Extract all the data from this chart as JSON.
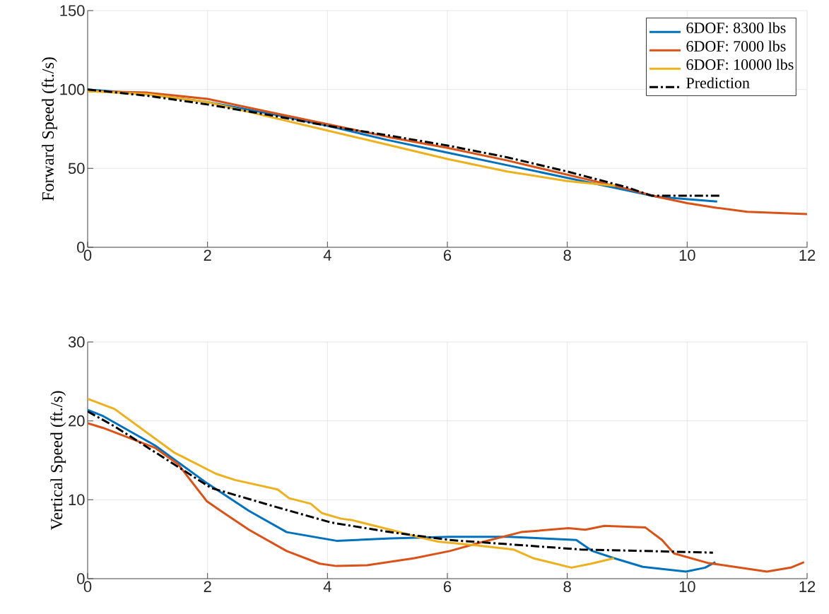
{
  "chart_data": [
    {
      "type": "line",
      "ylabel": "Forward Speed (ft./s)",
      "xlim": [
        0,
        12
      ],
      "ylim": [
        0,
        150
      ],
      "xticks": [
        0,
        2,
        4,
        6,
        8,
        10,
        12
      ],
      "yticks": [
        0,
        50,
        100,
        150
      ],
      "grid": true,
      "legend": "top right",
      "series": [
        {
          "name": "6DOF: 8300 lbs",
          "color": "#0072bd",
          "line_style": "solid",
          "x": [
            0,
            1,
            2,
            3,
            4,
            5,
            6,
            7,
            8,
            9,
            9.5,
            10.5
          ],
          "values": [
            100,
            97,
            92,
            85,
            77,
            68,
            60,
            52,
            44,
            36,
            32,
            29
          ]
        },
        {
          "name": "6DOF: 7000 lbs",
          "color": "#d95319",
          "line_style": "solid",
          "x": [
            0,
            1,
            2,
            3,
            4,
            5,
            6,
            7,
            8,
            9,
            9.5,
            10,
            10.5,
            11,
            12
          ],
          "values": [
            99,
            98,
            94,
            86,
            78,
            70,
            63,
            55,
            46,
            37,
            32,
            28,
            25,
            22.5,
            21
          ]
        },
        {
          "name": "6DOF: 10000 lbs",
          "color": "#edb120",
          "line_style": "solid",
          "x": [
            0,
            1,
            2,
            3,
            4,
            5,
            6,
            7,
            8,
            8.8
          ],
          "values": [
            99,
            97,
            92,
            83,
            74,
            65,
            56,
            48,
            42,
            39
          ]
        },
        {
          "name": "Prediction",
          "color": "#000000",
          "line_style": "dashdot",
          "x": [
            0,
            1,
            2,
            3,
            4,
            5,
            6,
            7,
            8,
            9,
            9.4,
            10.55
          ],
          "values": [
            100,
            96,
            90.5,
            84,
            77,
            71,
            64.5,
            57,
            48,
            38,
            32.7,
            32.7
          ]
        }
      ]
    },
    {
      "type": "line",
      "ylabel": "Vertical Speed (ft./s)",
      "xlim": [
        0,
        12
      ],
      "ylim": [
        0,
        30
      ],
      "xticks": [
        0,
        2,
        4,
        6,
        8,
        10,
        12
      ],
      "yticks": [
        0,
        10,
        20,
        30
      ],
      "grid": true,
      "series": [
        {
          "color": "#0072bd",
          "line_style": "solid",
          "x": [
            0,
            0.26,
            1.12,
            1.99,
            2.69,
            3.32,
            4.15,
            5.05,
            6.04,
            7.03,
            8.15,
            8.42,
            8.78,
            9.26,
            9.98,
            10.3,
            10.47
          ],
          "values": [
            21.4,
            20.6,
            16.9,
            12.1,
            8.6,
            5.9,
            4.8,
            5.1,
            5.3,
            5.3,
            4.9,
            3.5,
            2.6,
            1.5,
            0.9,
            1.4,
            2.1
          ]
        },
        {
          "color": "#d95319",
          "line_style": "solid",
          "x": [
            0,
            0.26,
            1.12,
            1.51,
            1.99,
            2.22,
            2.69,
            3.32,
            3.87,
            4.15,
            4.66,
            5.45,
            6.04,
            6.51,
            7.23,
            8.02,
            8.3,
            8.62,
            9.3,
            9.58,
            9.78,
            10.06,
            10.34,
            10.61,
            11.33,
            11.73,
            11.95
          ],
          "values": [
            19.7,
            19.1,
            16.6,
            14.5,
            9.8,
            8.6,
            6.2,
            3.5,
            1.9,
            1.6,
            1.7,
            2.6,
            3.5,
            4.5,
            5.9,
            6.4,
            6.2,
            6.7,
            6.5,
            4.9,
            3.2,
            2.6,
            2.0,
            1.7,
            0.9,
            1.4,
            2.1
          ]
        },
        {
          "color": "#edb120",
          "line_style": "solid",
          "x": [
            0,
            0.45,
            1.44,
            2.14,
            2.46,
            3.17,
            3.36,
            3.72,
            3.91,
            4.23,
            4.42,
            5.05,
            5.45,
            5.84,
            6.5,
            7.1,
            7.43,
            8.07,
            8.4,
            8.78
          ],
          "values": [
            22.8,
            21.5,
            16.0,
            13.3,
            12.5,
            11.3,
            10.2,
            9.5,
            8.3,
            7.6,
            7.4,
            6.2,
            5.4,
            4.7,
            4.2,
            3.7,
            2.6,
            1.4,
            1.9,
            2.6
          ]
        },
        {
          "color": "#000000",
          "line_style": "dashdot",
          "x": [
            0,
            0.45,
            1.44,
            2.06,
            3.09,
            4.07,
            5.05,
            6.04,
            8.22,
            10.43
          ],
          "values": [
            21.2,
            19.3,
            14.5,
            11.5,
            9.2,
            7.1,
            5.9,
            4.9,
            3.7,
            3.3
          ]
        }
      ]
    }
  ]
}
